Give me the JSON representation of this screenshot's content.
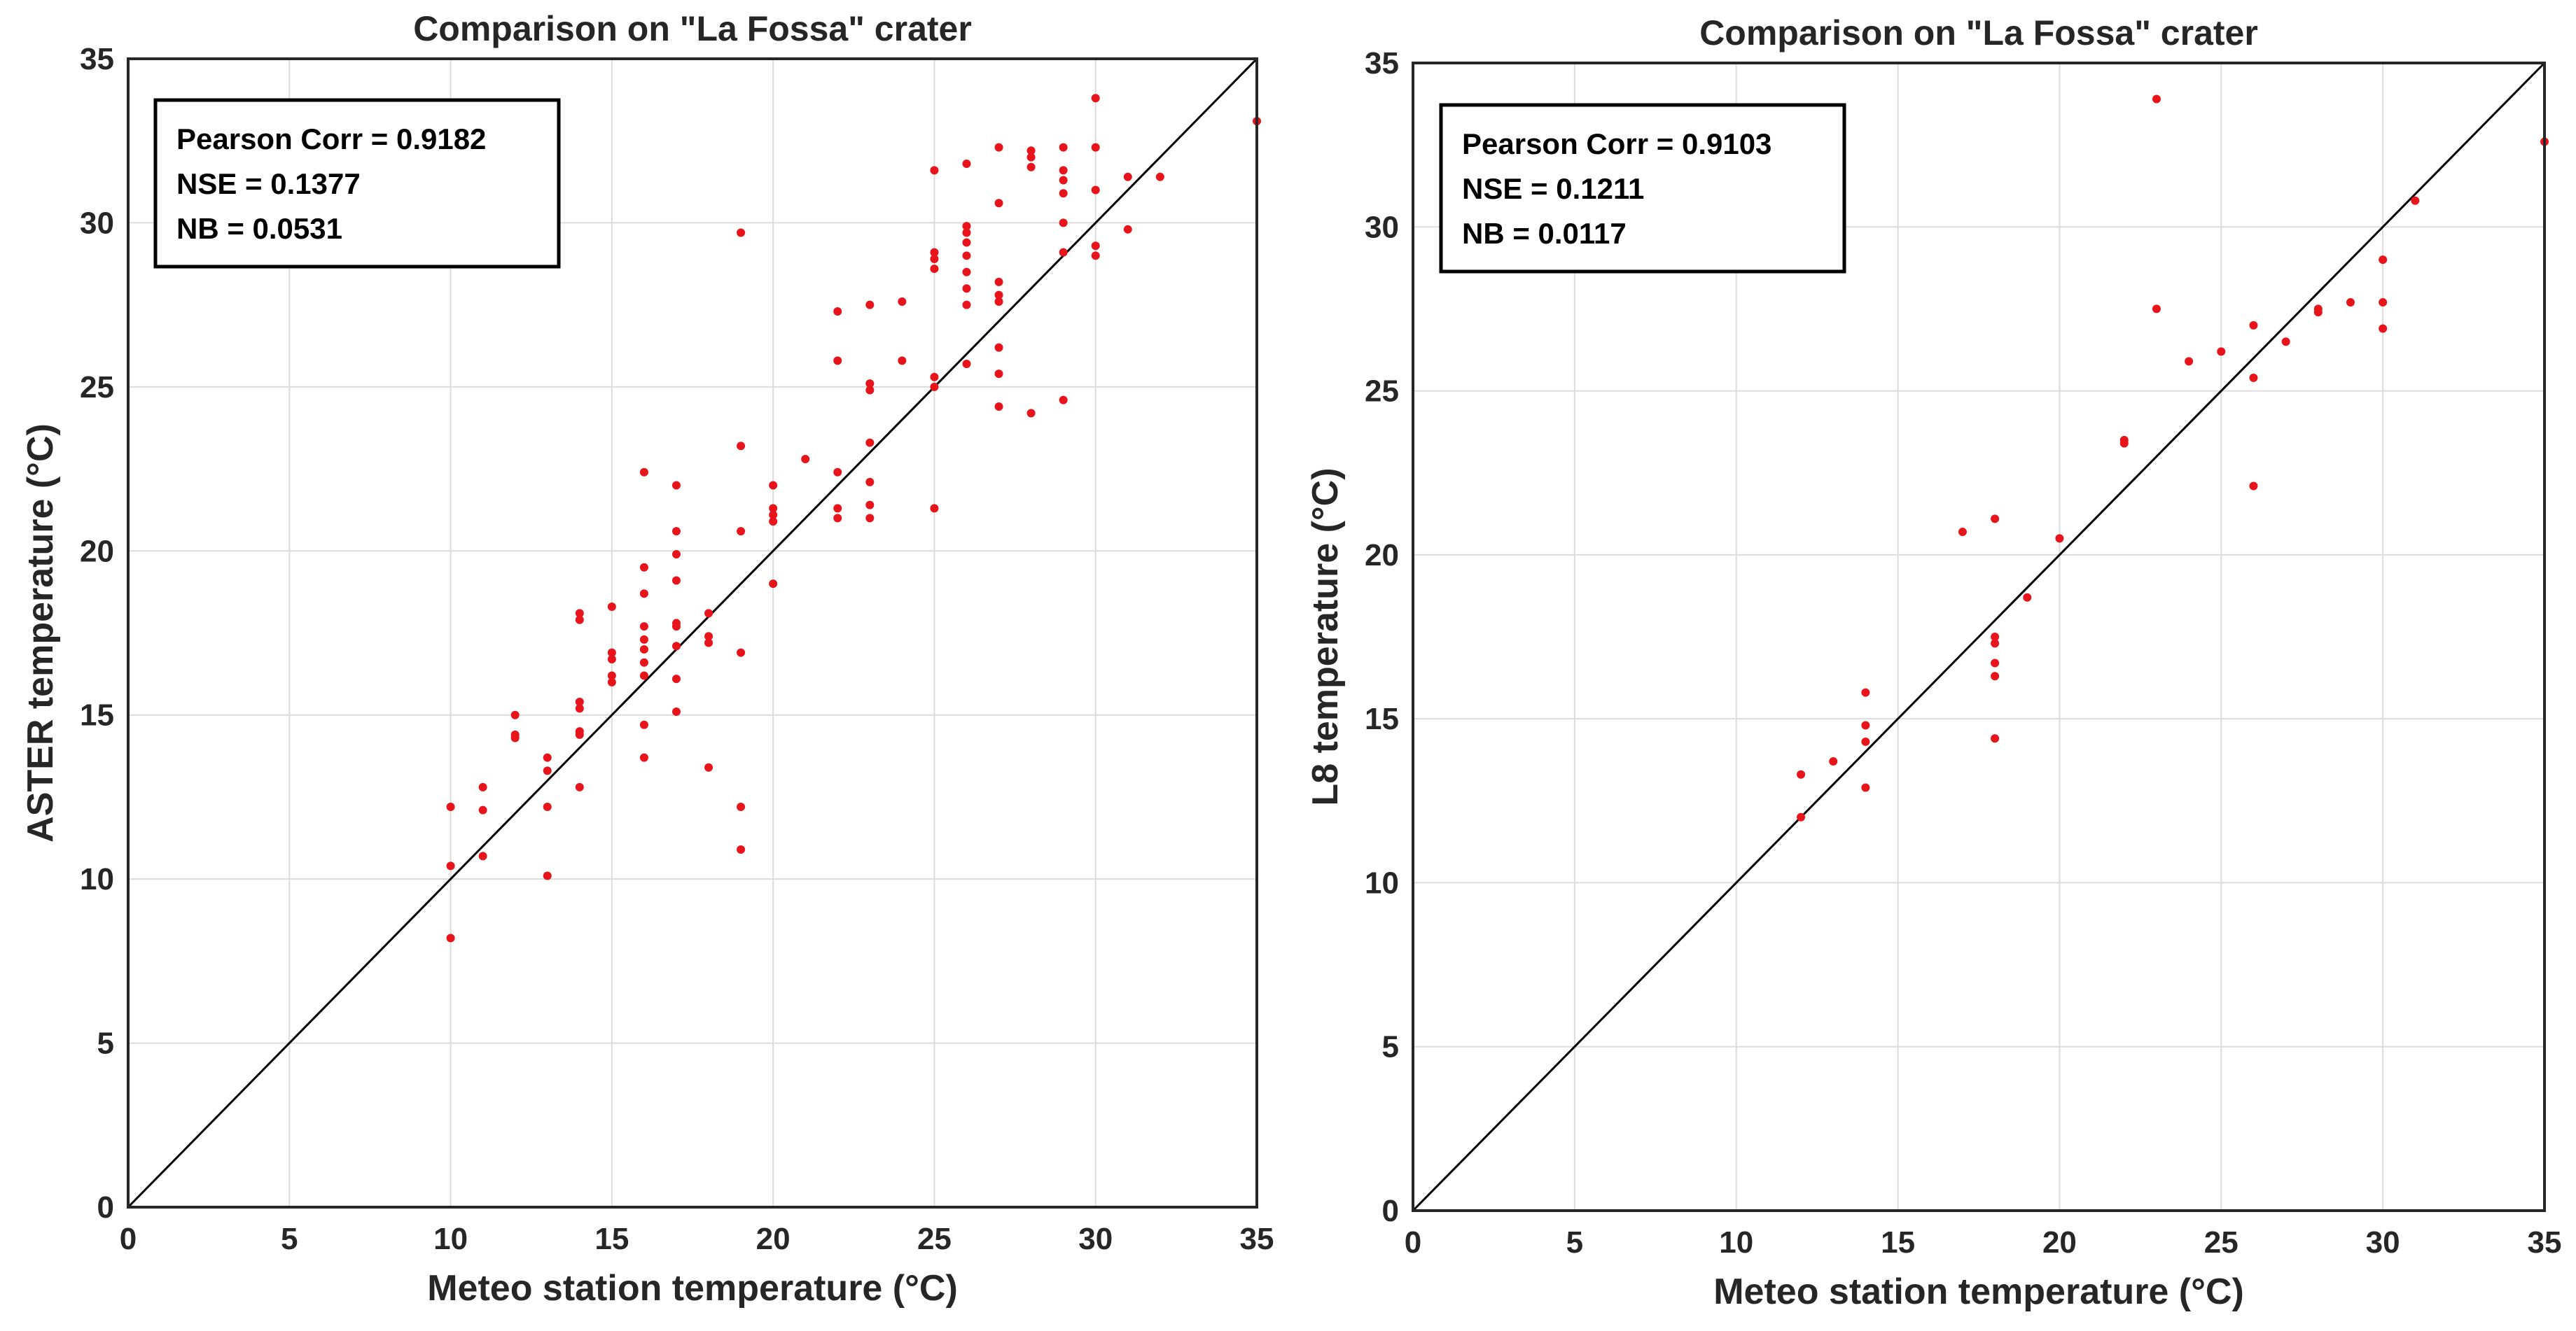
{
  "chart_data": [
    {
      "type": "scatter",
      "title": "Comparison on \"La Fossa\" crater",
      "xlabel": "Meteo station temperature (°C)",
      "ylabel": "ASTER temperature (°C)",
      "xlim": [
        0,
        35
      ],
      "ylim": [
        0,
        35
      ],
      "xticks": [
        0,
        5,
        10,
        15,
        20,
        25,
        30,
        35
      ],
      "yticks": [
        0,
        5,
        10,
        15,
        20,
        25,
        30,
        35
      ],
      "grid": true,
      "reference_line": "1:1",
      "point_color": "#e8141b",
      "stats": [
        "Pearson Corr = 0.9182",
        "NSE = 0.1377",
        "NB = 0.0531"
      ],
      "stats_location": "top-left",
      "points": [
        [
          10,
          8.2
        ],
        [
          10,
          10.4
        ],
        [
          10,
          12.2
        ],
        [
          11,
          10.7
        ],
        [
          11,
          12.1
        ],
        [
          11,
          12.8
        ],
        [
          12,
          14.3
        ],
        [
          12,
          14.4
        ],
        [
          12,
          15.0
        ],
        [
          13,
          10.1
        ],
        [
          13,
          12.2
        ],
        [
          13,
          13.3
        ],
        [
          13,
          13.7
        ],
        [
          14,
          12.8
        ],
        [
          14,
          14.4
        ],
        [
          14,
          14.5
        ],
        [
          14,
          15.2
        ],
        [
          14,
          15.4
        ],
        [
          14,
          17.9
        ],
        [
          14,
          18.1
        ],
        [
          15,
          16.0
        ],
        [
          15,
          16.2
        ],
        [
          15,
          16.7
        ],
        [
          15,
          16.9
        ],
        [
          15,
          18.3
        ],
        [
          16,
          13.7
        ],
        [
          16,
          14.7
        ],
        [
          16,
          16.2
        ],
        [
          16,
          16.6
        ],
        [
          16,
          17.0
        ],
        [
          16,
          17.3
        ],
        [
          16,
          17.7
        ],
        [
          16,
          18.7
        ],
        [
          16,
          19.5
        ],
        [
          16,
          22.4
        ],
        [
          17,
          15.1
        ],
        [
          17,
          16.1
        ],
        [
          17,
          17.1
        ],
        [
          17,
          17.7
        ],
        [
          17,
          17.8
        ],
        [
          17,
          19.1
        ],
        [
          17,
          19.9
        ],
        [
          17,
          20.6
        ],
        [
          17,
          22.0
        ],
        [
          18,
          13.4
        ],
        [
          18,
          17.2
        ],
        [
          18,
          17.4
        ],
        [
          18,
          18.1
        ],
        [
          19,
          10.9
        ],
        [
          19,
          12.2
        ],
        [
          19,
          16.9
        ],
        [
          19,
          20.6
        ],
        [
          19,
          23.2
        ],
        [
          19,
          29.7
        ],
        [
          20,
          19.0
        ],
        [
          20,
          20.9
        ],
        [
          20,
          21.1
        ],
        [
          20,
          21.3
        ],
        [
          20,
          22.0
        ],
        [
          21,
          22.8
        ],
        [
          22,
          21.0
        ],
        [
          22,
          21.3
        ],
        [
          22,
          22.4
        ],
        [
          22,
          25.8
        ],
        [
          22,
          27.3
        ],
        [
          23,
          21.0
        ],
        [
          23,
          21.4
        ],
        [
          23,
          22.1
        ],
        [
          23,
          23.3
        ],
        [
          23,
          24.9
        ],
        [
          23,
          25.1
        ],
        [
          23,
          27.5
        ],
        [
          24,
          25.8
        ],
        [
          24,
          27.6
        ],
        [
          25,
          21.3
        ],
        [
          25,
          25.0
        ],
        [
          25,
          25.3
        ],
        [
          25,
          28.6
        ],
        [
          25,
          28.9
        ],
        [
          25,
          29.1
        ],
        [
          25,
          31.6
        ],
        [
          26,
          25.7
        ],
        [
          26,
          27.5
        ],
        [
          26,
          28.0
        ],
        [
          26,
          28.5
        ],
        [
          26,
          29.0
        ],
        [
          26,
          29.4
        ],
        [
          26,
          29.7
        ],
        [
          26,
          29.9
        ],
        [
          26,
          31.8
        ],
        [
          27,
          24.4
        ],
        [
          27,
          25.4
        ],
        [
          27,
          26.2
        ],
        [
          27,
          27.6
        ],
        [
          27,
          27.8
        ],
        [
          27,
          28.2
        ],
        [
          27,
          30.6
        ],
        [
          27,
          32.3
        ],
        [
          28,
          24.2
        ],
        [
          28,
          31.7
        ],
        [
          28,
          32.0
        ],
        [
          28,
          32.2
        ],
        [
          29,
          24.6
        ],
        [
          29,
          29.1
        ],
        [
          29,
          30.0
        ],
        [
          29,
          30.9
        ],
        [
          29,
          31.3
        ],
        [
          29,
          31.6
        ],
        [
          29,
          32.3
        ],
        [
          30,
          29.0
        ],
        [
          30,
          29.3
        ],
        [
          30,
          31.0
        ],
        [
          30,
          32.3
        ],
        [
          30,
          33.8
        ],
        [
          31,
          29.8
        ],
        [
          31,
          31.4
        ],
        [
          32,
          31.4
        ],
        [
          35,
          33.1
        ]
      ]
    },
    {
      "type": "scatter",
      "title": "Comparison on \"La Fossa\" crater",
      "xlabel": "Meteo station temperature (°C)",
      "ylabel": "L8 temperature (°C)",
      "xlim": [
        0,
        35
      ],
      "ylim": [
        0,
        35
      ],
      "xticks": [
        0,
        5,
        10,
        15,
        20,
        25,
        30,
        35
      ],
      "yticks": [
        0,
        5,
        10,
        15,
        20,
        25,
        30,
        35
      ],
      "grid": true,
      "reference_line": "1:1",
      "point_color": "#e8141b",
      "stats": [
        "Pearson Corr = 0.9103",
        "NSE = 0.1211",
        "NB = 0.0117"
      ],
      "stats_location": "top-left",
      "points": [
        [
          12,
          12.0
        ],
        [
          12,
          13.3
        ],
        [
          13,
          13.7
        ],
        [
          14,
          12.9
        ],
        [
          14,
          14.3
        ],
        [
          14,
          14.8
        ],
        [
          14,
          15.8
        ],
        [
          17,
          20.7
        ],
        [
          18,
          14.4
        ],
        [
          18,
          16.3
        ],
        [
          18,
          16.7
        ],
        [
          18,
          17.3
        ],
        [
          18,
          17.5
        ],
        [
          18,
          21.1
        ],
        [
          19,
          18.7
        ],
        [
          20,
          20.5
        ],
        [
          22,
          23.4
        ],
        [
          22,
          23.5
        ],
        [
          23,
          27.5
        ],
        [
          23,
          33.9
        ],
        [
          24,
          25.9
        ],
        [
          25,
          26.2
        ],
        [
          26,
          22.1
        ],
        [
          26,
          25.4
        ],
        [
          26,
          27.0
        ],
        [
          27,
          26.5
        ],
        [
          28,
          27.4
        ],
        [
          28,
          27.5
        ],
        [
          29,
          27.7
        ],
        [
          30,
          26.9
        ],
        [
          30,
          27.7
        ],
        [
          30,
          29.0
        ],
        [
          31,
          30.8
        ],
        [
          35,
          32.6
        ]
      ]
    }
  ]
}
